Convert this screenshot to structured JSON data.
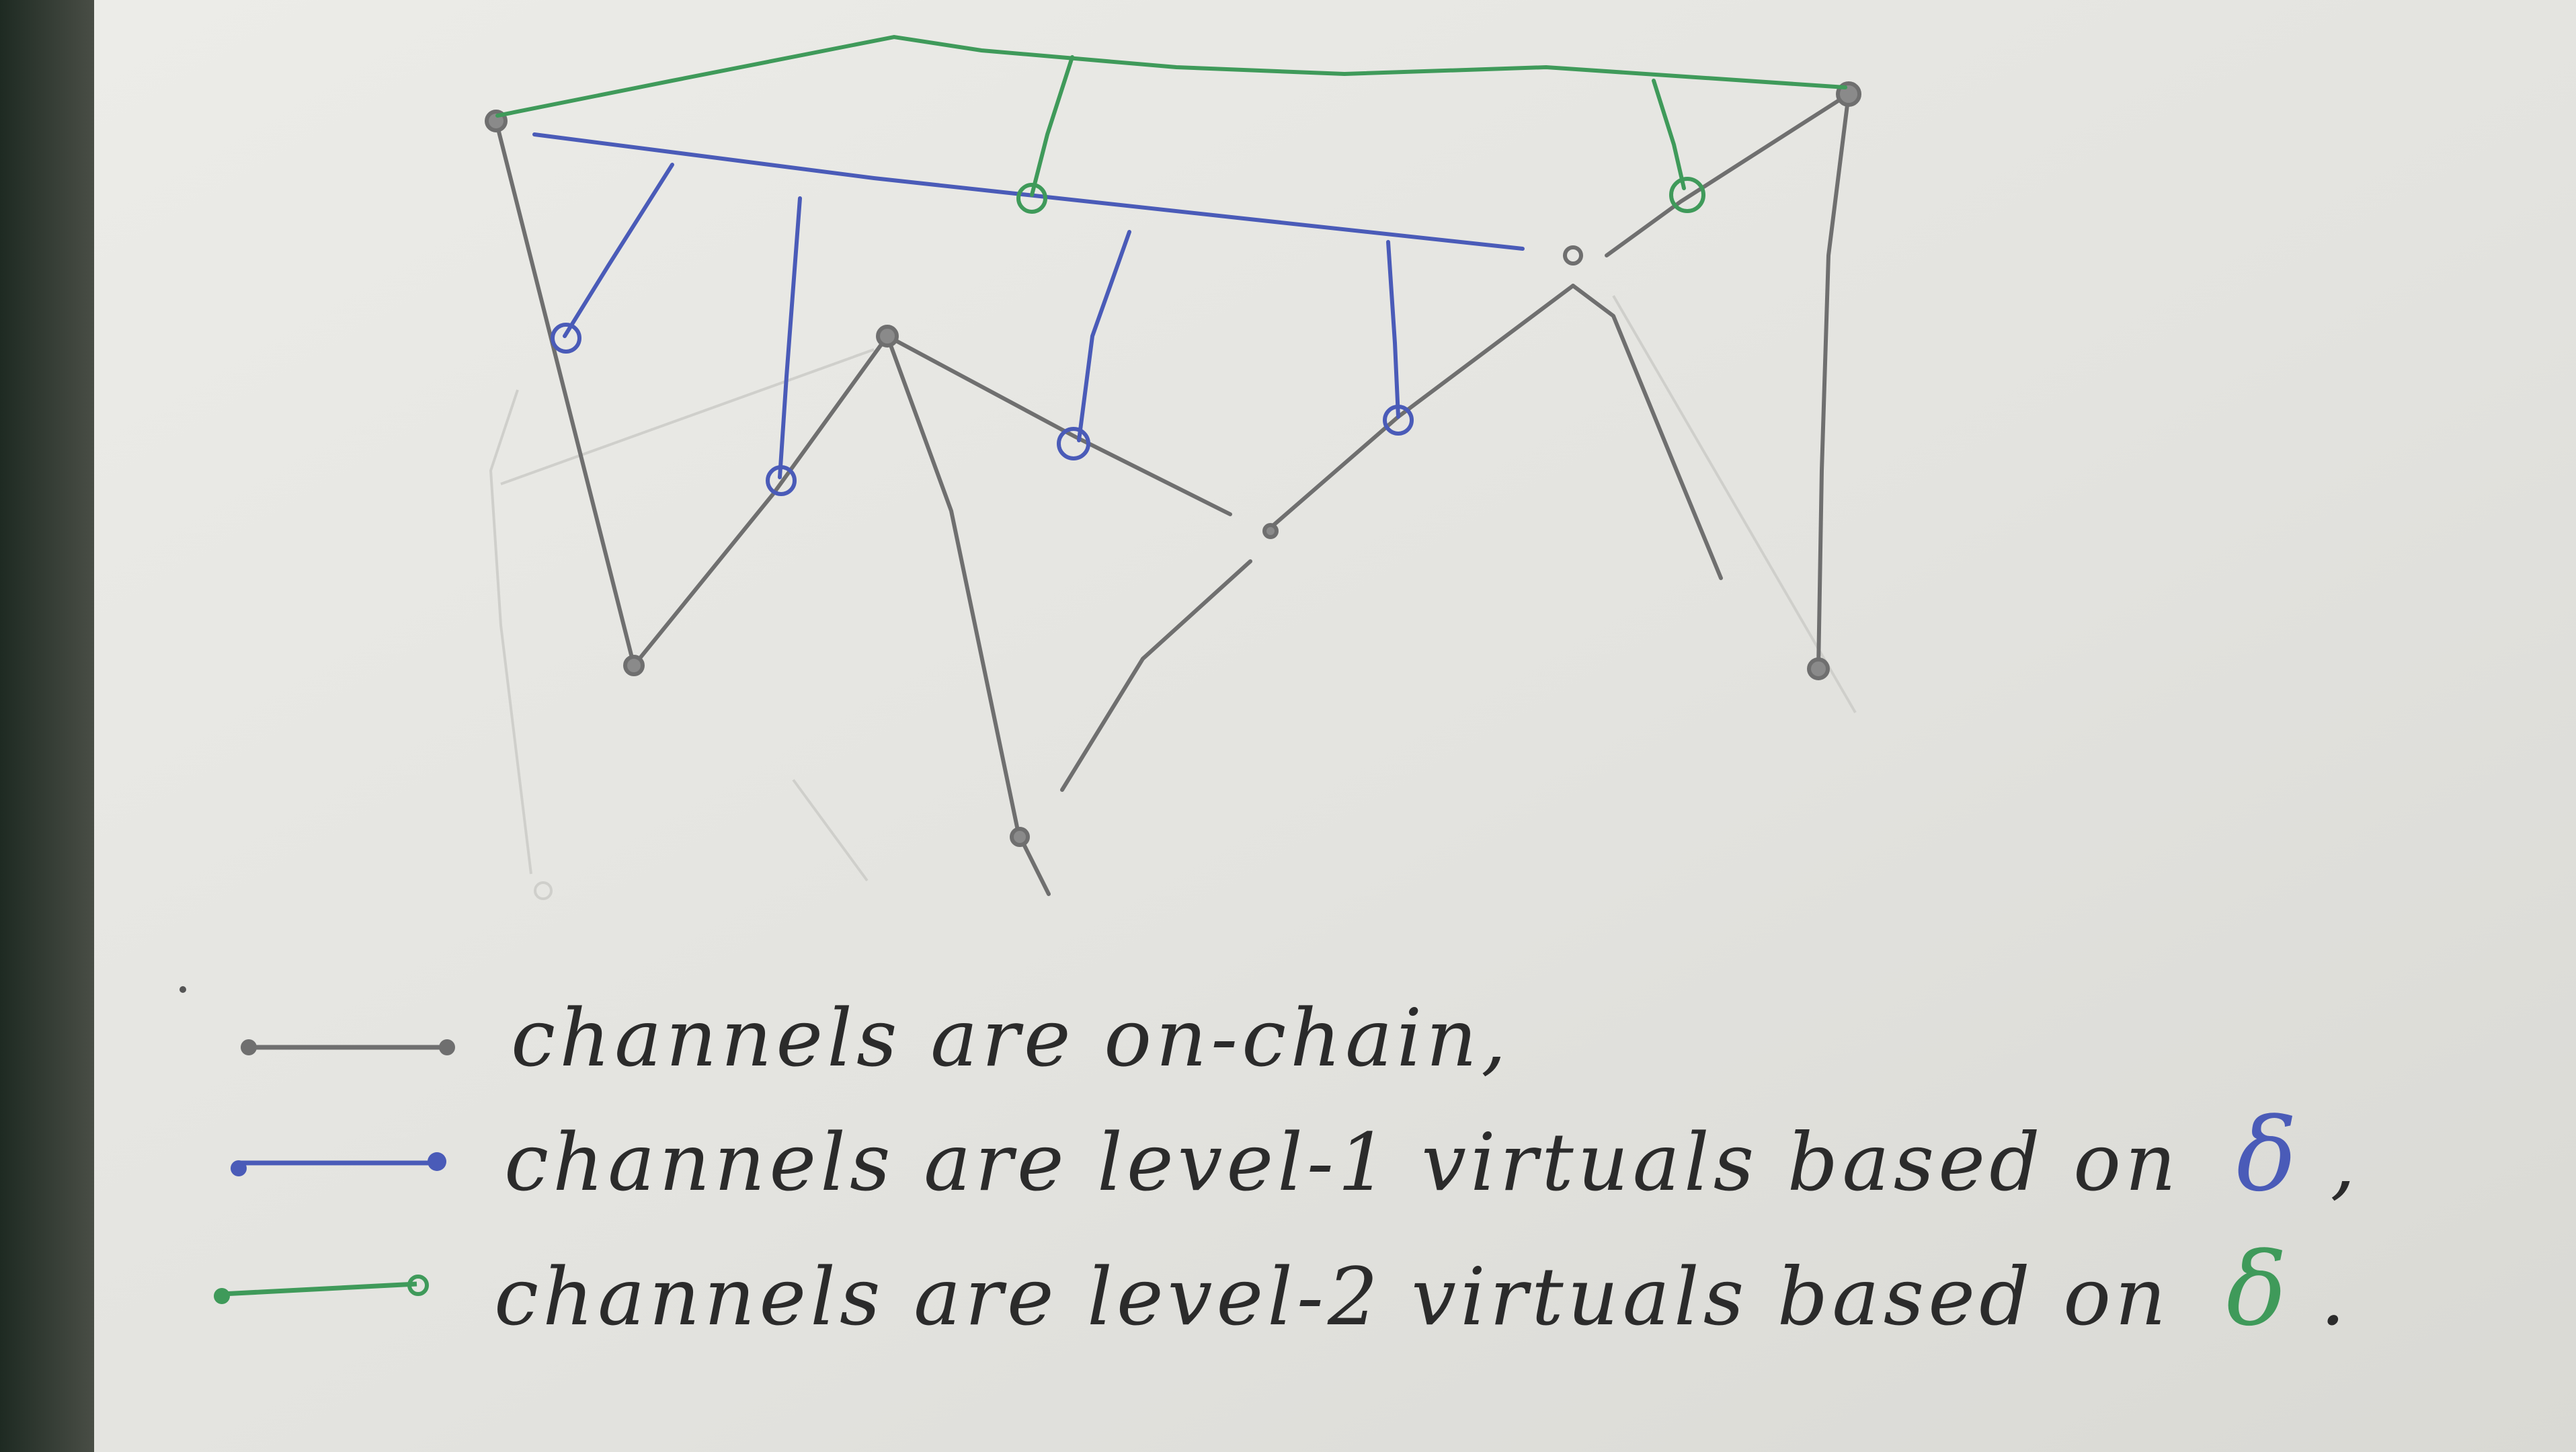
{
  "legend": {
    "items": [
      {
        "text": "channels are on-chain,",
        "color": "#6f6f6f"
      },
      {
        "text": "channels are level-1 virtuals based on",
        "glyph": "δ",
        "tail": ",",
        "color": "#4a5bb8"
      },
      {
        "text": "channels are level-2 virtuals based on",
        "glyph": "δ",
        "tail": ".",
        "color": "#3f9a5a"
      }
    ]
  },
  "colors": {
    "paper": "#e6e6e2",
    "pencil": "#6f6f6f",
    "blue_ink": "#4a5bb8",
    "green_ink": "#3f9a5a",
    "text_ink": "#2b2b2b"
  }
}
